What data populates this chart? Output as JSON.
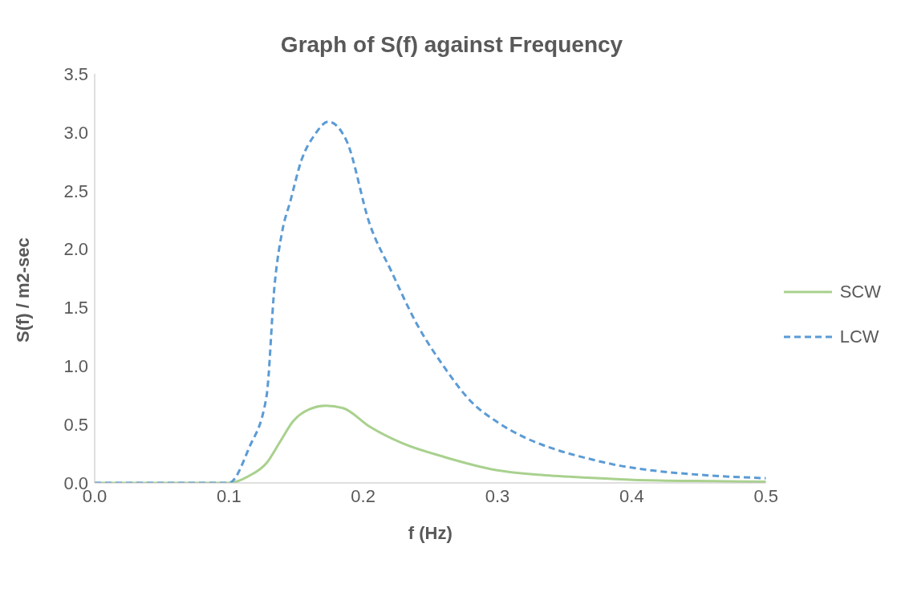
{
  "chart_data": {
    "type": "line",
    "title": "Graph of S(f) against Frequency",
    "xlabel": "f (Hz)",
    "ylabel": "S(f) / m2-sec",
    "series": [
      {
        "name": "SCW",
        "color": "#a9d18e",
        "line_style": "solid",
        "x": [
          0,
          0.05,
          0.08,
          0.09,
          0.1,
          0.115,
          0.128,
          0.138,
          0.148,
          0.16,
          0.172,
          0.185,
          0.205,
          0.229,
          0.261,
          0.299,
          0.33,
          0.367,
          0.42,
          0.46,
          0.5
        ],
        "values": [
          0,
          0,
          0,
          0,
          0,
          0.06,
          0.17,
          0.35,
          0.53,
          0.63,
          0.66,
          0.64,
          0.48,
          0.34,
          0.22,
          0.11,
          0.07,
          0.045,
          0.02,
          0.015,
          0.01
        ]
      },
      {
        "name": "LCW",
        "color": "#5b9bd5",
        "line_style": "dashed",
        "x": [
          0,
          0.05,
          0.08,
          0.1,
          0.115,
          0.128,
          0.134,
          0.14,
          0.1455,
          0.154,
          0.164,
          0.174,
          0.1875,
          0.205,
          0.221,
          0.239,
          0.261,
          0.28,
          0.3,
          0.321,
          0.345,
          0.367,
          0.39,
          0.413,
          0.45,
          0.5
        ],
        "values": [
          0,
          0,
          0,
          0,
          0.3,
          0.74,
          1.69,
          2.17,
          2.4,
          2.76,
          2.98,
          3.09,
          2.93,
          2.21,
          1.81,
          1.38,
          0.98,
          0.7,
          0.52,
          0.385,
          0.28,
          0.21,
          0.15,
          0.11,
          0.07,
          0.04
        ]
      }
    ],
    "xlim": [
      0,
      0.5
    ],
    "xticks": [
      {
        "value": 0,
        "label": "0.0"
      },
      0.1,
      0.2,
      0.3,
      0.4,
      0.5
    ],
    "ylim": [
      0,
      3.5
    ],
    "yticks": [
      {
        "value": 0,
        "label": "0.0"
      },
      0.5,
      {
        "value": 1,
        "label": "1.0"
      },
      1.5,
      {
        "value": 2,
        "label": "2.0"
      },
      2.5,
      {
        "value": 3,
        "label": "3.0"
      },
      3.5
    ],
    "grid": false,
    "legend": "right",
    "marker": "none"
  }
}
